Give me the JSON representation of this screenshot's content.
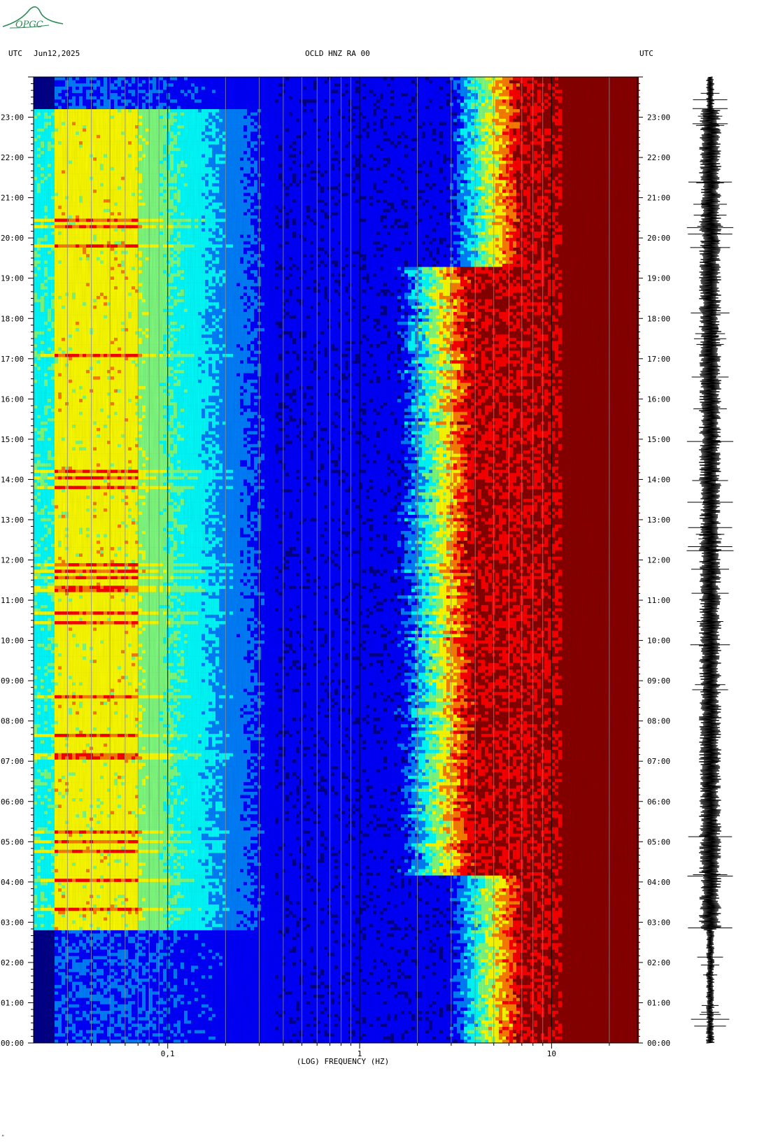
{
  "header": {
    "left_tz": "UTC",
    "date": "Jun12,2025",
    "station": "OCLD HNZ RA 00",
    "right_tz": "UTC"
  },
  "logo": {
    "text": "OPGC",
    "icon": "opgc-mountain-logo-icon"
  },
  "corner_mark": "”",
  "chart_data": {
    "type": "heatmap",
    "title": "OCLD HNZ RA 00",
    "xlabel": "(LOG) FREQUENCY (HZ)",
    "ylabel": "",
    "x_scale": "log",
    "x_range_hz": [
      0.02,
      28
    ],
    "x_tick_labels": [
      {
        "value": 0.1,
        "label": "0,1"
      },
      {
        "value": 1,
        "label": "1"
      },
      {
        "value": 10,
        "label": "10"
      }
    ],
    "y_range_hours": [
      0,
      24
    ],
    "y_tick_labels": [
      "00:00",
      "01:00",
      "02:00",
      "03:00",
      "04:00",
      "05:00",
      "06:00",
      "07:00",
      "08:00",
      "09:00",
      "10:00",
      "11:00",
      "12:00",
      "13:00",
      "14:00",
      "15:00",
      "16:00",
      "17:00",
      "18:00",
      "19:00",
      "20:00",
      "21:00",
      "22:00",
      "23:00"
    ],
    "colormap": [
      "#00008b",
      "#0000ff",
      "#0080ff",
      "#00ffff",
      "#80ff80",
      "#ffff00",
      "#ff8000",
      "#ff0000",
      "#8b0000"
    ],
    "high_energy_band_start_hz": 11,
    "seismogram_trace": true
  }
}
